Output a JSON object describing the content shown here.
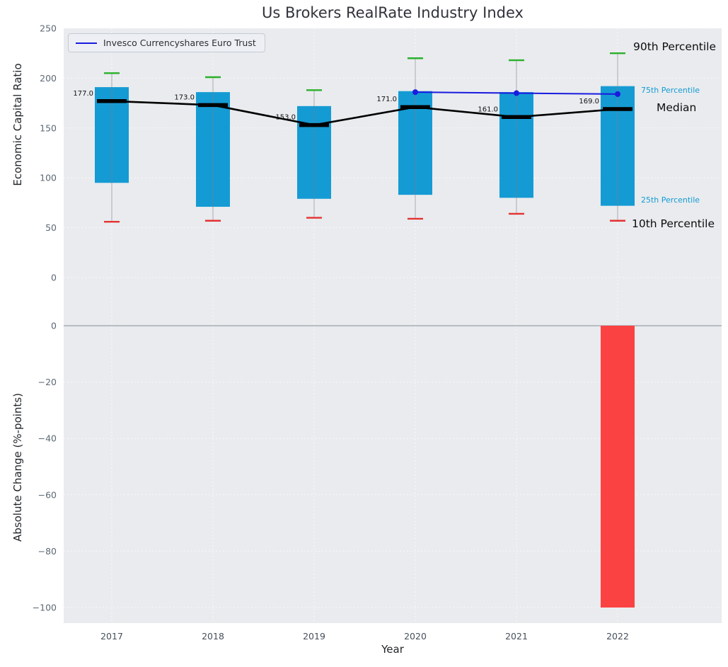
{
  "title": "Us Brokers RealRate Industry Index",
  "legend": {
    "label": "Invesco Currencyshares Euro Trust"
  },
  "axes": {
    "top_ylabel": "Economic Capital Ratio",
    "bottom_ylabel": "Absolute Change (%-points)",
    "xlabel": "Year"
  },
  "annotations": {
    "p90": "90th Percentile",
    "p75": "75th Percentile",
    "median": "Median",
    "p25": "25th Percentile",
    "p10": "10th Percentile"
  },
  "colors": {
    "panel_bg": "#e9ebee",
    "grid": "#f8f9fb",
    "bar": "#159bd4",
    "p90_cap": "#2bb02b",
    "p10_cap": "#e53131",
    "median": "#000000",
    "invesco": "#1a1ae0",
    "change_bar": "#fb4242",
    "zero_line": "#9aa0a6",
    "tick": "#5d6874",
    "tick_dark": "#454f5a",
    "annotation_blue": "#159bd4"
  },
  "chart_data": [
    {
      "type": "box",
      "panel": "top",
      "title": "Us Brokers RealRate Industry Index",
      "ylabel": "Economic Capital Ratio",
      "ylim": [
        0,
        250
      ],
      "yticks": [
        0,
        50,
        100,
        150,
        200,
        250
      ],
      "grid": true,
      "legend_position": "upper left",
      "categories": [
        "2017",
        "2018",
        "2019",
        "2020",
        "2021",
        "2022"
      ],
      "series": [
        {
          "name": "10th Percentile",
          "values": [
            56,
            57,
            60,
            59,
            64,
            57
          ]
        },
        {
          "name": "25th Percentile",
          "values": [
            95,
            71,
            79,
            83,
            80,
            72
          ]
        },
        {
          "name": "Median",
          "values": [
            177,
            173,
            153,
            171,
            161,
            169
          ]
        },
        {
          "name": "75th Percentile",
          "values": [
            191,
            186,
            172,
            187,
            186,
            192
          ]
        },
        {
          "name": "90th Percentile",
          "values": [
            205,
            201,
            188,
            220,
            218,
            225
          ]
        },
        {
          "name": "Invesco Currencyshares Euro Trust",
          "values": [
            null,
            null,
            null,
            186,
            185,
            184
          ]
        }
      ],
      "median_labels": [
        "177.0",
        "173.0",
        "153.0",
        "171.0",
        "161.0",
        "169.0"
      ]
    },
    {
      "type": "bar",
      "panel": "bottom",
      "ylabel": "Absolute Change (%-points)",
      "xlabel": "Year",
      "ylim": [
        -103,
        2
      ],
      "yticks": [
        0,
        -20,
        -40,
        -60,
        -80,
        -100
      ],
      "grid": true,
      "categories": [
        "2017",
        "2018",
        "2019",
        "2020",
        "2021",
        "2022"
      ],
      "values": [
        null,
        null,
        null,
        null,
        null,
        -100
      ]
    }
  ]
}
